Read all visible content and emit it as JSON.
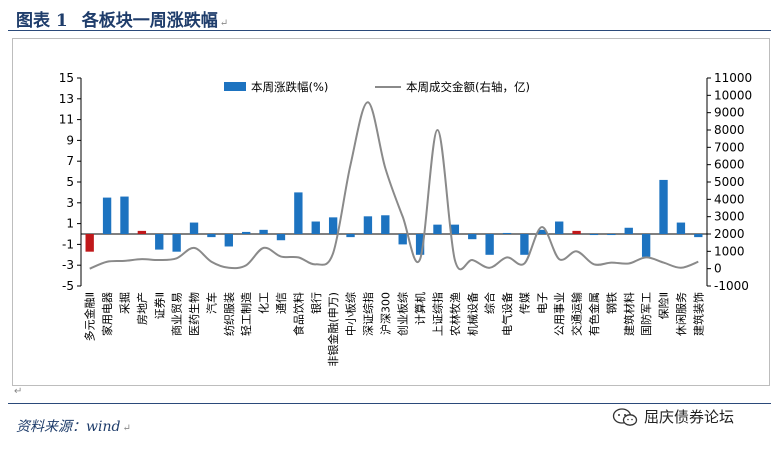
{
  "figure": {
    "label": "图表 1",
    "title": "各板块一周涨跌幅",
    "mark": "↵",
    "source": "资料来源：wind",
    "brand": "屈庆债券论坛"
  },
  "chart_data": {
    "type": "bar+line",
    "legend": {
      "bar": "本周涨跌幅(%)",
      "line": "本周成交金额(右轴，亿)",
      "placement": "top-center"
    },
    "y_left": {
      "min": -5,
      "max": 15,
      "ticks": [
        15,
        13,
        11,
        9,
        7,
        5,
        3,
        1,
        -1,
        -3,
        -5
      ]
    },
    "y_right": {
      "min": -1000,
      "max": 11000,
      "ticks": [
        11000,
        10000,
        9000,
        8000,
        7000,
        6000,
        5000,
        4000,
        3000,
        2000,
        1000,
        0,
        -1000
      ]
    },
    "categories": [
      "多元金融Ⅱ",
      "家用电器",
      "采掘",
      "房地产",
      "证券Ⅱ",
      "商业贸易",
      "医药生物",
      "汽车",
      "纺织服装",
      "轻工制造",
      "化工",
      "通信",
      "食品饮料",
      "银行",
      "非银金融(申万)",
      "中小板综",
      "深证综指",
      "沪深300",
      "创业板综",
      "计算机",
      "上证综指",
      "农林牧渔",
      "机械设备",
      "综合",
      "电气设备",
      "传媒",
      "电子",
      "公用事业",
      "交通运输",
      "有色金属",
      "钢铁",
      "建筑材料",
      "国防军工",
      "保险Ⅱ",
      "休闲服务",
      "建筑装饰"
    ],
    "values": [
      -1.7,
      3.5,
      3.6,
      0.3,
      -1.5,
      -1.7,
      1.1,
      -0.3,
      -1.2,
      0.2,
      0.4,
      -0.6,
      4.0,
      1.2,
      1.6,
      -0.3,
      1.7,
      1.8,
      -1.0,
      -2.0,
      0.9,
      0.9,
      -0.5,
      -2.0,
      0.1,
      -2.0,
      0.4,
      1.2,
      0.3,
      -0.1,
      -0.1,
      0.6,
      -2.2,
      5.2,
      1.1,
      -0.3
    ],
    "bar_colors": {
      "positive": "#1d73c0",
      "negative": "#1d73c0",
      "highlight": "#c0181a"
    },
    "highlighted": [
      "多元金融Ⅱ",
      "房地产",
      "交通运输"
    ],
    "turnover": [
      0,
      400,
      450,
      550,
      500,
      600,
      1200,
      400,
      50,
      200,
      1200,
      700,
      650,
      250,
      900,
      6000,
      9600,
      5800,
      3000,
      550,
      8000,
      500,
      500,
      50,
      650,
      300,
      2400,
      550,
      1000,
      250,
      350,
      300,
      650,
      350,
      50,
      400
    ],
    "line_color": "#8a8a8a",
    "grid": false
  }
}
